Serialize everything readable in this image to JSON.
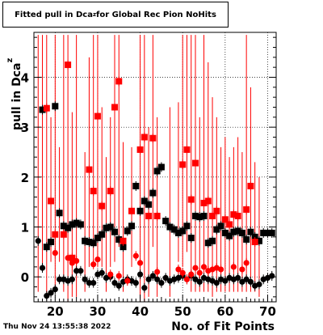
{
  "chart_data": {
    "type": "scatter",
    "title": "Fitted pull in Dca_z for Global Rec Pion NoHits",
    "xlabel": "No. of Fit Points",
    "ylabel": "pull in Dca_z",
    "xlim": [
      15,
      72
    ],
    "ylim": [
      -0.5,
      4.9
    ],
    "xticks": [
      20,
      30,
      40,
      50,
      60,
      70
    ],
    "yticks": [
      0,
      1,
      2,
      3,
      4
    ],
    "grid": true,
    "colors": {
      "black": "#000000",
      "red": "#ff0000"
    },
    "series": [
      {
        "marker": "square",
        "color": "#000000",
        "points": [
          {
            "x": 17,
            "y": 3.35
          },
          {
            "x": 18,
            "y": 0.6
          },
          {
            "x": 19,
            "y": 0.7
          },
          {
            "x": 20,
            "y": 3.42
          },
          {
            "x": 21,
            "y": 1.28
          },
          {
            "x": 22,
            "y": 1.02
          },
          {
            "x": 23,
            "y": 0.98
          },
          {
            "x": 24,
            "y": 1.05
          },
          {
            "x": 25,
            "y": 1.08
          },
          {
            "x": 26,
            "y": 1.05
          },
          {
            "x": 27,
            "y": 0.72
          },
          {
            "x": 28,
            "y": 0.7
          },
          {
            "x": 29,
            "y": 0.68
          },
          {
            "x": 30,
            "y": 0.78
          },
          {
            "x": 31,
            "y": 0.85
          },
          {
            "x": 32,
            "y": 0.98
          },
          {
            "x": 33,
            "y": 1.0
          },
          {
            "x": 34,
            "y": 0.9
          },
          {
            "x": 35,
            "y": 0.75
          },
          {
            "x": 36,
            "y": 0.6
          },
          {
            "x": 37,
            "y": 0.92
          },
          {
            "x": 38,
            "y": 1.02
          },
          {
            "x": 39,
            "y": 1.82
          },
          {
            "x": 40,
            "y": 1.32
          },
          {
            "x": 41,
            "y": 1.52
          },
          {
            "x": 42,
            "y": 1.45
          },
          {
            "x": 43,
            "y": 1.68
          },
          {
            "x": 44,
            "y": 2.12
          },
          {
            "x": 45,
            "y": 2.2
          },
          {
            "x": 46,
            "y": 1.12
          },
          {
            "x": 47,
            "y": 1.0
          },
          {
            "x": 48,
            "y": 0.95
          },
          {
            "x": 49,
            "y": 0.88
          },
          {
            "x": 50,
            "y": 0.92
          },
          {
            "x": 51,
            "y": 1.02
          },
          {
            "x": 52,
            "y": 0.78
          },
          {
            "x": 53,
            "y": 1.22
          },
          {
            "x": 54,
            "y": 1.2
          },
          {
            "x": 55,
            "y": 1.22
          },
          {
            "x": 56,
            "y": 0.68
          },
          {
            "x": 57,
            "y": 0.72
          },
          {
            "x": 58,
            "y": 0.95
          },
          {
            "x": 59,
            "y": 1.02
          },
          {
            "x": 60,
            "y": 0.88
          },
          {
            "x": 61,
            "y": 0.82
          },
          {
            "x": 62,
            "y": 0.9
          },
          {
            "x": 63,
            "y": 0.92
          },
          {
            "x": 64,
            "y": 0.88
          },
          {
            "x": 65,
            "y": 0.75
          },
          {
            "x": 66,
            "y": 0.9
          },
          {
            "x": 67,
            "y": 0.8
          },
          {
            "x": 68,
            "y": 0.72
          },
          {
            "x": 69,
            "y": 0.88
          },
          {
            "x": 70,
            "y": 0.88
          },
          {
            "x": 71,
            "y": 0.88
          }
        ]
      },
      {
        "marker": "square",
        "color": "#ff0000",
        "points": [
          {
            "x": 18,
            "y": 3.38
          },
          {
            "x": 19,
            "y": 1.52
          },
          {
            "x": 20,
            "y": 0.85
          },
          {
            "x": 22,
            "y": 0.85
          },
          {
            "x": 23,
            "y": 4.25
          },
          {
            "x": 24,
            "y": 0.38
          },
          {
            "x": 28,
            "y": 2.15
          },
          {
            "x": 29,
            "y": 1.72
          },
          {
            "x": 30,
            "y": 3.22
          },
          {
            "x": 31,
            "y": 1.42
          },
          {
            "x": 33,
            "y": 1.72
          },
          {
            "x": 34,
            "y": 3.4
          },
          {
            "x": 35,
            "y": 3.92
          },
          {
            "x": 36,
            "y": 0.72
          },
          {
            "x": 38,
            "y": 1.32
          },
          {
            "x": 40,
            "y": 2.55
          },
          {
            "x": 41,
            "y": 2.8
          },
          {
            "x": 42,
            "y": 1.22
          },
          {
            "x": 43,
            "y": 2.78
          },
          {
            "x": 44,
            "y": 1.22
          },
          {
            "x": 50,
            "y": 2.25
          },
          {
            "x": 51,
            "y": 2.55
          },
          {
            "x": 52,
            "y": 1.55
          },
          {
            "x": 53,
            "y": 2.28
          },
          {
            "x": 55,
            "y": 1.48
          },
          {
            "x": 56,
            "y": 1.52
          },
          {
            "x": 57,
            "y": 1.22
          },
          {
            "x": 58,
            "y": 1.32
          },
          {
            "x": 60,
            "y": 1.15
          },
          {
            "x": 61,
            "y": 1.05
          },
          {
            "x": 62,
            "y": 1.25
          },
          {
            "x": 63,
            "y": 1.22
          },
          {
            "x": 65,
            "y": 1.35
          },
          {
            "x": 66,
            "y": 1.82
          },
          {
            "x": 67,
            "y": 0.7
          }
        ]
      },
      {
        "marker": "circle",
        "color": "#000000",
        "points": [
          {
            "x": 16,
            "y": 0.72
          },
          {
            "x": 17,
            "y": 0.18
          },
          {
            "x": 18,
            "y": -0.38
          },
          {
            "x": 19,
            "y": -0.32
          },
          {
            "x": 20,
            "y": -0.25
          },
          {
            "x": 21,
            "y": -0.05
          },
          {
            "x": 22,
            "y": -0.05
          },
          {
            "x": 23,
            "y": -0.08
          },
          {
            "x": 24,
            "y": -0.05
          },
          {
            "x": 25,
            "y": 0.12
          },
          {
            "x": 26,
            "y": 0.12
          },
          {
            "x": 27,
            "y": -0.05
          },
          {
            "x": 28,
            "y": -0.12
          },
          {
            "x": 29,
            "y": -0.12
          },
          {
            "x": 30,
            "y": 0.05
          },
          {
            "x": 31,
            "y": 0.08
          },
          {
            "x": 32,
            "y": -0.02
          },
          {
            "x": 33,
            "y": 0.0
          },
          {
            "x": 34,
            "y": -0.12
          },
          {
            "x": 35,
            "y": -0.18
          },
          {
            "x": 36,
            "y": -0.1
          },
          {
            "x": 37,
            "y": -0.05
          },
          {
            "x": 38,
            "y": -0.08
          },
          {
            "x": 39,
            "y": -0.12
          },
          {
            "x": 40,
            "y": 0.05
          },
          {
            "x": 41,
            "y": -0.22
          },
          {
            "x": 42,
            "y": -0.05
          },
          {
            "x": 43,
            "y": 0.02
          },
          {
            "x": 44,
            "y": -0.05
          },
          {
            "x": 45,
            "y": -0.12
          },
          {
            "x": 46,
            "y": -0.02
          },
          {
            "x": 47,
            "y": -0.08
          },
          {
            "x": 48,
            "y": -0.05
          },
          {
            "x": 49,
            "y": -0.02
          },
          {
            "x": 50,
            "y": 0.02
          },
          {
            "x": 51,
            "y": -0.05
          },
          {
            "x": 52,
            "y": 0.02
          },
          {
            "x": 53,
            "y": -0.05
          },
          {
            "x": 54,
            "y": -0.1
          },
          {
            "x": 55,
            "y": -0.02
          },
          {
            "x": 56,
            "y": -0.05
          },
          {
            "x": 57,
            "y": -0.08
          },
          {
            "x": 58,
            "y": -0.12
          },
          {
            "x": 59,
            "y": -0.05
          },
          {
            "x": 60,
            "y": -0.08
          },
          {
            "x": 61,
            "y": -0.02
          },
          {
            "x": 62,
            "y": -0.05
          },
          {
            "x": 63,
            "y": -0.02
          },
          {
            "x": 64,
            "y": -0.1
          },
          {
            "x": 65,
            "y": -0.05
          },
          {
            "x": 66,
            "y": -0.1
          },
          {
            "x": 67,
            "y": -0.18
          },
          {
            "x": 68,
            "y": -0.15
          },
          {
            "x": 69,
            "y": -0.05
          },
          {
            "x": 70,
            "y": -0.02
          },
          {
            "x": 71,
            "y": 0.02
          }
        ]
      },
      {
        "marker": "circle",
        "color": "#ff0000",
        "points": [
          {
            "x": 20,
            "y": 0.48
          },
          {
            "x": 23,
            "y": 0.38
          },
          {
            "x": 24,
            "y": 0.28
          },
          {
            "x": 25,
            "y": 0.32
          },
          {
            "x": 29,
            "y": 0.25
          },
          {
            "x": 30,
            "y": 0.35
          },
          {
            "x": 33,
            "y": 0.05
          },
          {
            "x": 35,
            "y": 0.02
          },
          {
            "x": 37,
            "y": -0.08
          },
          {
            "x": 39,
            "y": 0.42
          },
          {
            "x": 40,
            "y": 0.28
          },
          {
            "x": 44,
            "y": 0.1
          },
          {
            "x": 49,
            "y": 0.15
          },
          {
            "x": 50,
            "y": 0.08
          },
          {
            "x": 51,
            "y": -0.05
          },
          {
            "x": 52,
            "y": 0.05
          },
          {
            "x": 53,
            "y": 0.18
          },
          {
            "x": 54,
            "y": 0.08
          },
          {
            "x": 55,
            "y": 0.2
          },
          {
            "x": 56,
            "y": 0.12
          },
          {
            "x": 57,
            "y": 0.15
          },
          {
            "x": 58,
            "y": 0.18
          },
          {
            "x": 59,
            "y": 0.15
          },
          {
            "x": 62,
            "y": 0.2
          },
          {
            "x": 64,
            "y": 0.15
          },
          {
            "x": 65,
            "y": 0.28
          }
        ]
      }
    ],
    "errorbars": {
      "color": "#ff0000",
      "segments": [
        {
          "x": 16,
          "lo": -0.3,
          "hi": 4.85
        },
        {
          "x": 17,
          "lo": 0.2,
          "hi": 4.85
        },
        {
          "x": 18,
          "lo": -0.4,
          "hi": 4.85
        },
        {
          "x": 19,
          "lo": 0.3,
          "hi": 3.2
        },
        {
          "x": 20,
          "lo": -0.2,
          "hi": 4.85
        },
        {
          "x": 21,
          "lo": 0.3,
          "hi": 2.6
        },
        {
          "x": 22,
          "lo": -0.3,
          "hi": 4.85
        },
        {
          "x": 23,
          "lo": -0.5,
          "hi": 4.85
        },
        {
          "x": 24,
          "lo": -0.4,
          "hi": 3.3
        },
        {
          "x": 25,
          "lo": -0.4,
          "hi": 4.85
        },
        {
          "x": 27,
          "lo": -0.3,
          "hi": 2.5
        },
        {
          "x": 28,
          "lo": 0.2,
          "hi": 4.4
        },
        {
          "x": 29,
          "lo": 0.2,
          "hi": 4.85
        },
        {
          "x": 30,
          "lo": 0.2,
          "hi": 4.85
        },
        {
          "x": 31,
          "lo": 0.2,
          "hi": 3.4
        },
        {
          "x": 32,
          "lo": -0.3,
          "hi": 2.4
        },
        {
          "x": 33,
          "lo": 0.2,
          "hi": 3.2
        },
        {
          "x": 34,
          "lo": 0.3,
          "hi": 4.85
        },
        {
          "x": 35,
          "lo": 0.6,
          "hi": 4.85
        },
        {
          "x": 36,
          "lo": -0.3,
          "hi": 2.7
        },
        {
          "x": 38,
          "lo": 0.2,
          "hi": 2.6
        },
        {
          "x": 40,
          "lo": -0.5,
          "hi": 4.85
        },
        {
          "x": 41,
          "lo": -0.5,
          "hi": 4.85
        },
        {
          "x": 42,
          "lo": -0.4,
          "hi": 3.0
        },
        {
          "x": 43,
          "lo": 0.6,
          "hi": 4.85
        },
        {
          "x": 44,
          "lo": -0.4,
          "hi": 3.2
        },
        {
          "x": 47,
          "lo": -0.4,
          "hi": 3.4
        },
        {
          "x": 49,
          "lo": 0.3,
          "hi": 3.5
        },
        {
          "x": 50,
          "lo": 0.2,
          "hi": 4.85
        },
        {
          "x": 51,
          "lo": 0.5,
          "hi": 4.85
        },
        {
          "x": 52,
          "lo": -0.3,
          "hi": 4.85
        },
        {
          "x": 53,
          "lo": -0.3,
          "hi": 4.85
        },
        {
          "x": 54,
          "lo": -0.3,
          "hi": 3.2
        },
        {
          "x": 55,
          "lo": -0.3,
          "hi": 4.85
        },
        {
          "x": 56,
          "lo": -0.3,
          "hi": 4.3
        },
        {
          "x": 57,
          "lo": -0.4,
          "hi": 3.6
        },
        {
          "x": 58,
          "lo": -0.3,
          "hi": 3.2
        },
        {
          "x": 59,
          "lo": -0.3,
          "hi": 2.6
        },
        {
          "x": 60,
          "lo": -0.3,
          "hi": 2.8
        },
        {
          "x": 61,
          "lo": -0.3,
          "hi": 2.4
        },
        {
          "x": 62,
          "lo": -0.3,
          "hi": 2.6
        },
        {
          "x": 63,
          "lo": -0.3,
          "hi": 2.8
        },
        {
          "x": 64,
          "lo": -0.3,
          "hi": 2.5
        },
        {
          "x": 65,
          "lo": -0.3,
          "hi": 4.85
        },
        {
          "x": 66,
          "lo": -0.3,
          "hi": 3.8
        },
        {
          "x": 67,
          "lo": -0.3,
          "hi": 2.3
        },
        {
          "x": 68,
          "lo": -0.4,
          "hi": 2.0
        }
      ]
    }
  },
  "footer": {
    "timestamp": "Thu Nov 24 13:55:38 2022"
  }
}
